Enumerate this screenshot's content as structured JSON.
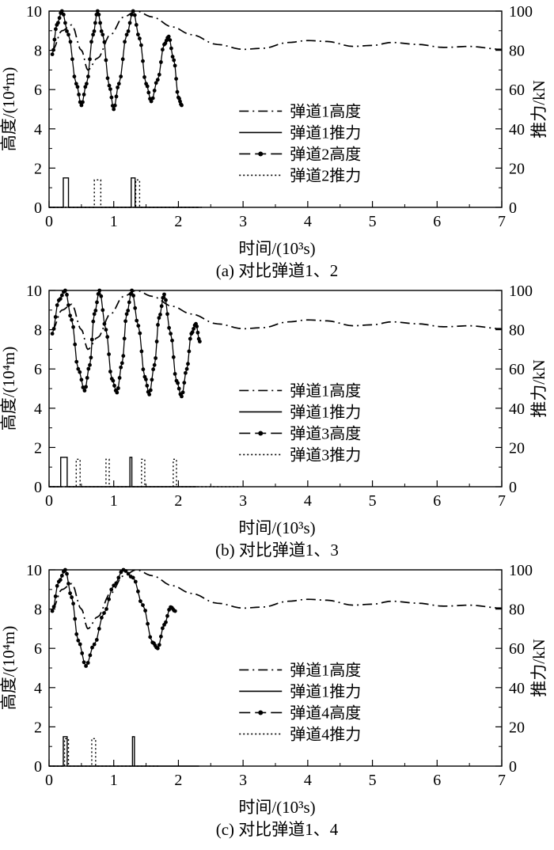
{
  "colors": {
    "ink": "#000000",
    "background": "#ffffff"
  },
  "chart_data": [
    {
      "type": "line",
      "title": "(a) 对比弹道1、2",
      "xlabel": "时间/(10³s)",
      "ylabel_left": "高度/(10⁴m)",
      "ylabel_right": "推力/kN",
      "xlim": [
        0,
        7
      ],
      "ylim_left": [
        0,
        10
      ],
      "ylim_right": [
        0,
        100
      ],
      "xticks": [
        0,
        1,
        2,
        3,
        4,
        5,
        6,
        7
      ],
      "yticks_left": [
        0,
        2,
        4,
        6,
        8,
        10
      ],
      "yticks_right": [
        0,
        20,
        40,
        60,
        80,
        100
      ],
      "legend_position": "right-middle",
      "grid": false,
      "series": [
        {
          "name": "弹道1高度",
          "axis": "left",
          "style": "dashdot",
          "keypoints": [
            [
              0.05,
              8.0
            ],
            [
              0.2,
              9.0
            ],
            [
              0.35,
              9.3
            ],
            [
              0.5,
              8.0
            ],
            [
              0.6,
              7.0
            ],
            [
              0.75,
              7.6
            ],
            [
              0.95,
              8.8
            ],
            [
              1.15,
              9.7
            ],
            [
              1.35,
              10.0
            ],
            [
              1.6,
              9.7
            ],
            [
              1.9,
              9.2
            ],
            [
              2.2,
              8.8
            ],
            [
              2.6,
              8.3
            ],
            [
              3.0,
              8.05
            ],
            [
              3.3,
              8.1
            ],
            [
              3.7,
              8.4
            ],
            [
              4.0,
              8.5
            ],
            [
              4.3,
              8.45
            ],
            [
              4.7,
              8.2
            ],
            [
              5.0,
              8.25
            ],
            [
              5.3,
              8.4
            ],
            [
              5.7,
              8.3
            ],
            [
              6.1,
              8.15
            ],
            [
              6.5,
              8.2
            ],
            [
              7.0,
              8.05
            ]
          ]
        },
        {
          "name": "弹道1推力",
          "axis": "right",
          "style": "solid-pulse",
          "pulses": [
            [
              0.22,
              0.3,
              15
            ],
            [
              1.27,
              1.33,
              15
            ]
          ]
        },
        {
          "name": "弹道2高度",
          "axis": "left",
          "style": "marker-line",
          "keypoints": [
            [
              0.05,
              7.8
            ],
            [
              0.12,
              9.3
            ],
            [
              0.2,
              10.0
            ],
            [
              0.3,
              8.8
            ],
            [
              0.42,
              6.3
            ],
            [
              0.5,
              5.2
            ],
            [
              0.58,
              6.3
            ],
            [
              0.68,
              8.8
            ],
            [
              0.75,
              10.0
            ],
            [
              0.83,
              8.8
            ],
            [
              0.93,
              6.2
            ],
            [
              1.0,
              5.0
            ],
            [
              1.08,
              6.3
            ],
            [
              1.2,
              8.8
            ],
            [
              1.3,
              10.0
            ],
            [
              1.4,
              8.6
            ],
            [
              1.5,
              6.3
            ],
            [
              1.58,
              5.4
            ],
            [
              1.68,
              6.5
            ],
            [
              1.78,
              8.3
            ],
            [
              1.85,
              8.7
            ],
            [
              1.93,
              7.5
            ],
            [
              2.0,
              5.6
            ],
            [
              2.05,
              5.2
            ]
          ]
        },
        {
          "name": "弹道2推力",
          "axis": "right",
          "style": "dotted-pulse",
          "pulses": [
            [
              0.7,
              0.8,
              14
            ],
            [
              1.34,
              1.4,
              14
            ]
          ]
        }
      ]
    },
    {
      "type": "line",
      "title": "(b) 对比弹道1、3",
      "xlabel": "时间/(10³s)",
      "ylabel_left": "高度/(10⁴m)",
      "ylabel_right": "推力/kN",
      "xlim": [
        0,
        7
      ],
      "ylim_left": [
        0,
        10
      ],
      "ylim_right": [
        0,
        100
      ],
      "xticks": [
        0,
        1,
        2,
        3,
        4,
        5,
        6,
        7
      ],
      "yticks_left": [
        0,
        2,
        4,
        6,
        8,
        10
      ],
      "yticks_right": [
        0,
        20,
        40,
        60,
        80,
        100
      ],
      "legend_position": "right-middle",
      "grid": false,
      "series": [
        {
          "name": "弹道1高度",
          "axis": "left",
          "style": "dashdot",
          "keypoints": [
            [
              0.05,
              8.0
            ],
            [
              0.2,
              9.0
            ],
            [
              0.35,
              9.3
            ],
            [
              0.5,
              8.0
            ],
            [
              0.6,
              7.0
            ],
            [
              0.75,
              7.6
            ],
            [
              0.95,
              8.8
            ],
            [
              1.15,
              9.7
            ],
            [
              1.35,
              10.0
            ],
            [
              1.6,
              9.7
            ],
            [
              1.9,
              9.2
            ],
            [
              2.2,
              8.8
            ],
            [
              2.6,
              8.3
            ],
            [
              3.0,
              8.05
            ],
            [
              3.3,
              8.1
            ],
            [
              3.7,
              8.4
            ],
            [
              4.0,
              8.5
            ],
            [
              4.3,
              8.45
            ],
            [
              4.7,
              8.2
            ],
            [
              5.0,
              8.25
            ],
            [
              5.3,
              8.4
            ],
            [
              5.7,
              8.3
            ],
            [
              6.1,
              8.15
            ],
            [
              6.5,
              8.2
            ],
            [
              7.0,
              8.05
            ]
          ]
        },
        {
          "name": "弹道1推力",
          "axis": "right",
          "style": "solid-pulse",
          "pulses": [
            [
              0.18,
              0.28,
              15
            ],
            [
              1.25,
              1.28,
              15
            ]
          ]
        },
        {
          "name": "弹道3高度",
          "axis": "left",
          "style": "marker-line",
          "keypoints": [
            [
              0.05,
              7.8
            ],
            [
              0.15,
              9.5
            ],
            [
              0.25,
              10.0
            ],
            [
              0.35,
              8.5
            ],
            [
              0.45,
              6.0
            ],
            [
              0.55,
              4.9
            ],
            [
              0.63,
              6.2
            ],
            [
              0.7,
              8.8
            ],
            [
              0.78,
              10.0
            ],
            [
              0.88,
              8.0
            ],
            [
              0.97,
              5.5
            ],
            [
              1.05,
              4.8
            ],
            [
              1.13,
              6.3
            ],
            [
              1.2,
              8.8
            ],
            [
              1.28,
              10.0
            ],
            [
              1.38,
              8.2
            ],
            [
              1.48,
              5.6
            ],
            [
              1.55,
              4.7
            ],
            [
              1.63,
              6.2
            ],
            [
              1.7,
              8.6
            ],
            [
              1.78,
              9.8
            ],
            [
              1.88,
              7.8
            ],
            [
              1.97,
              5.4
            ],
            [
              2.05,
              4.6
            ],
            [
              2.13,
              6.0
            ],
            [
              2.2,
              7.8
            ],
            [
              2.27,
              8.3
            ],
            [
              2.33,
              7.4
            ]
          ]
        },
        {
          "name": "弹道3推力",
          "axis": "right",
          "style": "dotted-pulse",
          "pulses": [
            [
              0.42,
              0.48,
              14
            ],
            [
              0.88,
              0.93,
              14
            ],
            [
              1.43,
              1.48,
              14
            ],
            [
              1.92,
              1.97,
              14
            ]
          ]
        }
      ]
    },
    {
      "type": "line",
      "title": "(c) 对比弹道1、4",
      "xlabel": "时间/(10³s)",
      "ylabel_left": "高度/(10⁴m)",
      "ylabel_right": "推力/kN",
      "xlim": [
        0,
        7
      ],
      "ylim_left": [
        0,
        10
      ],
      "ylim_right": [
        0,
        100
      ],
      "xticks": [
        0,
        1,
        2,
        3,
        4,
        5,
        6,
        7
      ],
      "yticks_left": [
        0,
        2,
        4,
        6,
        8,
        10
      ],
      "yticks_right": [
        0,
        20,
        40,
        60,
        80,
        100
      ],
      "legend_position": "right-middle",
      "grid": false,
      "series": [
        {
          "name": "弹道1高度",
          "axis": "left",
          "style": "dashdot",
          "keypoints": [
            [
              0.05,
              8.0
            ],
            [
              0.2,
              9.0
            ],
            [
              0.35,
              9.3
            ],
            [
              0.5,
              8.0
            ],
            [
              0.6,
              7.0
            ],
            [
              0.75,
              7.6
            ],
            [
              0.95,
              8.8
            ],
            [
              1.15,
              9.7
            ],
            [
              1.35,
              10.0
            ],
            [
              1.6,
              9.7
            ],
            [
              1.9,
              9.2
            ],
            [
              2.2,
              8.8
            ],
            [
              2.6,
              8.3
            ],
            [
              3.0,
              8.05
            ],
            [
              3.3,
              8.1
            ],
            [
              3.7,
              8.4
            ],
            [
              4.0,
              8.5
            ],
            [
              4.3,
              8.45
            ],
            [
              4.7,
              8.2
            ],
            [
              5.0,
              8.25
            ],
            [
              5.3,
              8.4
            ],
            [
              5.7,
              8.3
            ],
            [
              6.1,
              8.15
            ],
            [
              6.5,
              8.2
            ],
            [
              7.0,
              8.05
            ]
          ]
        },
        {
          "name": "弹道1推力",
          "axis": "right",
          "style": "solid-pulse",
          "pulses": [
            [
              0.22,
              0.28,
              15
            ],
            [
              1.29,
              1.32,
              15
            ]
          ]
        },
        {
          "name": "弹道4高度",
          "axis": "left",
          "style": "marker-line",
          "keypoints": [
            [
              0.05,
              7.9
            ],
            [
              0.15,
              9.4
            ],
            [
              0.25,
              10.0
            ],
            [
              0.35,
              8.6
            ],
            [
              0.45,
              6.4
            ],
            [
              0.57,
              5.1
            ],
            [
              0.7,
              6.2
            ],
            [
              0.85,
              7.8
            ],
            [
              1.0,
              9.2
            ],
            [
              1.15,
              10.0
            ],
            [
              1.3,
              9.6
            ],
            [
              1.45,
              8.2
            ],
            [
              1.6,
              6.3
            ],
            [
              1.68,
              6.0
            ],
            [
              1.78,
              7.2
            ],
            [
              1.88,
              8.1
            ],
            [
              1.95,
              7.9
            ]
          ]
        },
        {
          "name": "弹道4推力",
          "axis": "right",
          "style": "dotted-pulse",
          "pulses": [
            [
              0.24,
              0.3,
              14
            ],
            [
              0.66,
              0.72,
              14
            ]
          ]
        }
      ]
    }
  ]
}
